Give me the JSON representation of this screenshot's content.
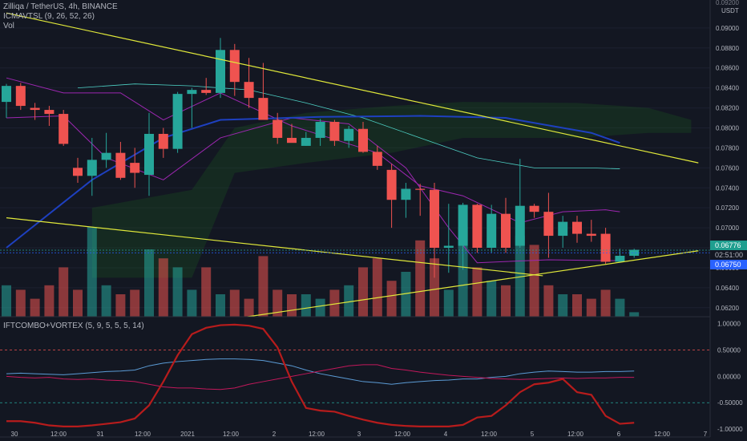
{
  "header": {
    "symbol_line": "Zilliqa / TetherUS, 4h, BINANCE",
    "indicator1": "ICMAVTSL (9, 26, 52, 26)",
    "indicator2": "Vol",
    "indicator3": "IFTCOMBO+VORTEX (5, 9, 5, 5, 5, 14)"
  },
  "price_axis": {
    "currency": "USDT",
    "top_partial": "0.09200",
    "ticks": [
      "0.09000",
      "0.08800",
      "0.08600",
      "0.08400",
      "0.08200",
      "0.08000",
      "0.07800",
      "0.07600",
      "0.07400",
      "0.07200",
      "0.07000",
      "0.06800",
      "0.06600",
      "0.06400",
      "0.06200"
    ]
  },
  "price_badges": {
    "current": "0.06776",
    "countdown": "02:51:00",
    "low": "0.06750"
  },
  "osc_axis": {
    "ticks": [
      "1.00000",
      "0.50000",
      "0.00000",
      "-0.50000",
      "-1.00000"
    ]
  },
  "time_axis": {
    "labels": [
      "30",
      "12:00",
      "31",
      "12:00",
      "2021",
      "12:00",
      "2",
      "12:00",
      "3",
      "12:00",
      "4",
      "12:00",
      "5",
      "12:00",
      "6",
      "12:00",
      "7"
    ]
  },
  "colors": {
    "up": "#26a69a",
    "down": "#ef5350",
    "trend": "#e0e83a",
    "vortex": "#5b9bd5",
    "ift": "#b71c1c",
    "ma": "#1e40c0"
  },
  "chart_data": {
    "type": "candlestick",
    "interval": "4h",
    "candles": [
      {
        "o": 0.0826,
        "h": 0.0844,
        "l": 0.081,
        "c": 0.0842
      },
      {
        "o": 0.0842,
        "h": 0.0845,
        "l": 0.0818,
        "c": 0.0822
      },
      {
        "o": 0.082,
        "h": 0.0825,
        "l": 0.0808,
        "c": 0.0818
      },
      {
        "o": 0.0818,
        "h": 0.0822,
        "l": 0.0802,
        "c": 0.0814
      },
      {
        "o": 0.0814,
        "h": 0.0818,
        "l": 0.0782,
        "c": 0.0784
      },
      {
        "o": 0.076,
        "h": 0.077,
        "l": 0.0745,
        "c": 0.0752
      },
      {
        "o": 0.0752,
        "h": 0.079,
        "l": 0.0732,
        "c": 0.0768
      },
      {
        "o": 0.0768,
        "h": 0.0795,
        "l": 0.076,
        "c": 0.0775
      },
      {
        "o": 0.0775,
        "h": 0.0786,
        "l": 0.0748,
        "c": 0.075
      },
      {
        "o": 0.0765,
        "h": 0.078,
        "l": 0.074,
        "c": 0.0755
      },
      {
        "o": 0.0753,
        "h": 0.0815,
        "l": 0.0732,
        "c": 0.0794
      },
      {
        "o": 0.0794,
        "h": 0.08,
        "l": 0.077,
        "c": 0.0779
      },
      {
        "o": 0.0779,
        "h": 0.0836,
        "l": 0.0775,
        "c": 0.0834
      },
      {
        "o": 0.0834,
        "h": 0.084,
        "l": 0.08,
        "c": 0.0838
      },
      {
        "o": 0.0838,
        "h": 0.085,
        "l": 0.0833,
        "c": 0.0835
      },
      {
        "o": 0.0835,
        "h": 0.089,
        "l": 0.083,
        "c": 0.0878
      },
      {
        "o": 0.0878,
        "h": 0.0884,
        "l": 0.0832,
        "c": 0.0846
      },
      {
        "o": 0.0846,
        "h": 0.087,
        "l": 0.082,
        "c": 0.083
      },
      {
        "o": 0.083,
        "h": 0.0865,
        "l": 0.081,
        "c": 0.0808
      },
      {
        "o": 0.0808,
        "h": 0.0815,
        "l": 0.0784,
        "c": 0.079
      },
      {
        "o": 0.079,
        "h": 0.0804,
        "l": 0.0786,
        "c": 0.0785
      },
      {
        "o": 0.0782,
        "h": 0.0796,
        "l": 0.0782,
        "c": 0.079
      },
      {
        "o": 0.079,
        "h": 0.0809,
        "l": 0.0782,
        "c": 0.0806
      },
      {
        "o": 0.0806,
        "h": 0.0808,
        "l": 0.0782,
        "c": 0.0787
      },
      {
        "o": 0.0787,
        "h": 0.0802,
        "l": 0.078,
        "c": 0.0799
      },
      {
        "o": 0.0799,
        "h": 0.0806,
        "l": 0.0775,
        "c": 0.0776
      },
      {
        "o": 0.0776,
        "h": 0.0782,
        "l": 0.0758,
        "c": 0.0762
      },
      {
        "o": 0.0758,
        "h": 0.0764,
        "l": 0.07,
        "c": 0.0728
      },
      {
        "o": 0.0728,
        "h": 0.0745,
        "l": 0.071,
        "c": 0.0739
      },
      {
        "o": 0.0739,
        "h": 0.0744,
        "l": 0.0712,
        "c": 0.0738
      },
      {
        "o": 0.0738,
        "h": 0.0745,
        "l": 0.065,
        "c": 0.068
      },
      {
        "o": 0.068,
        "h": 0.0724,
        "l": 0.0655,
        "c": 0.0682
      },
      {
        "o": 0.0682,
        "h": 0.0725,
        "l": 0.0658,
        "c": 0.0723
      },
      {
        "o": 0.0723,
        "h": 0.0724,
        "l": 0.0675,
        "c": 0.068
      },
      {
        "o": 0.068,
        "h": 0.0723,
        "l": 0.0675,
        "c": 0.0714
      },
      {
        "o": 0.0714,
        "h": 0.073,
        "l": 0.0675,
        "c": 0.068
      },
      {
        "o": 0.0682,
        "h": 0.0769,
        "l": 0.068,
        "c": 0.0722
      },
      {
        "o": 0.0722,
        "h": 0.0724,
        "l": 0.071,
        "c": 0.0716
      },
      {
        "o": 0.0716,
        "h": 0.0735,
        "l": 0.067,
        "c": 0.0692
      },
      {
        "o": 0.0692,
        "h": 0.0712,
        "l": 0.068,
        "c": 0.0706
      },
      {
        "o": 0.0706,
        "h": 0.0712,
        "l": 0.0685,
        "c": 0.0694
      },
      {
        "o": 0.0694,
        "h": 0.0708,
        "l": 0.0686,
        "c": 0.0692
      },
      {
        "o": 0.0694,
        "h": 0.07,
        "l": 0.0664,
        "c": 0.0666
      },
      {
        "o": 0.0666,
        "h": 0.0679,
        "l": 0.0667,
        "c": 0.0672
      },
      {
        "o": 0.0672,
        "h": 0.0679,
        "l": 0.067,
        "c": 0.0678
      }
    ],
    "volume": [
      0.14,
      0.12,
      0.08,
      0.14,
      0.22,
      0.12,
      0.4,
      0.14,
      0.1,
      0.12,
      0.3,
      0.26,
      0.22,
      0.12,
      0.22,
      0.1,
      0.12,
      0.08,
      0.27,
      0.12,
      0.1,
      0.1,
      0.08,
      0.12,
      0.14,
      0.22,
      0.26,
      0.16,
      0.2,
      0.34,
      0.26,
      0.12,
      0.4,
      0.22,
      0.16,
      0.14,
      0.36,
      0.32,
      0.14,
      0.1,
      0.1,
      0.08,
      0.12,
      0.08,
      0.02
    ],
    "trendlines": [
      {
        "from": [
          0,
          0.0915
        ],
        "to": [
          48.5,
          0.0765
        ]
      },
      {
        "from": [
          0,
          0.071
        ],
        "to": [
          37.6,
          0.0652
        ]
      },
      {
        "from": [
          16.9,
          0.0611
        ],
        "to": [
          48.5,
          0.0677
        ]
      }
    ],
    "horizontal_levels": [
      0.06776,
      0.0675
    ],
    "moving_average": [
      [
        0,
        0.068
      ],
      [
        6,
        0.0748
      ],
      [
        11,
        0.079
      ],
      [
        15,
        0.0808
      ],
      [
        22,
        0.0811
      ],
      [
        29,
        0.0812
      ],
      [
        35,
        0.081
      ],
      [
        41,
        0.0795
      ],
      [
        43,
        0.0785
      ]
    ],
    "cloud_upper": [
      [
        6,
        0.072
      ],
      [
        13,
        0.0738
      ],
      [
        16,
        0.08
      ],
      [
        21,
        0.0815
      ],
      [
        27,
        0.0822
      ],
      [
        32,
        0.0826
      ],
      [
        40,
        0.0825
      ],
      [
        45,
        0.082
      ],
      [
        48,
        0.0808
      ]
    ],
    "cloud_lower": [
      [
        6,
        0.065
      ],
      [
        13,
        0.065
      ],
      [
        16,
        0.0755
      ],
      [
        21,
        0.0765
      ],
      [
        27,
        0.0775
      ],
      [
        32,
        0.079
      ],
      [
        40,
        0.079
      ],
      [
        45,
        0.0795
      ],
      [
        48,
        0.0795
      ]
    ],
    "band_a": [
      [
        0,
        0.085
      ],
      [
        4,
        0.0835
      ],
      [
        8,
        0.0835
      ],
      [
        11,
        0.0808
      ],
      [
        15,
        0.0835
      ],
      [
        20,
        0.0802
      ],
      [
        26,
        0.0775
      ],
      [
        29,
        0.0742
      ],
      [
        32,
        0.0732
      ],
      [
        36,
        0.0705
      ],
      [
        39,
        0.0716
      ],
      [
        42,
        0.0718
      ],
      [
        43,
        0.0716
      ]
    ],
    "band_b": [
      [
        0,
        0.081
      ],
      [
        4,
        0.0812
      ],
      [
        7,
        0.077
      ],
      [
        11,
        0.0748
      ],
      [
        15,
        0.079
      ],
      [
        20,
        0.081
      ],
      [
        24,
        0.0804
      ],
      [
        28,
        0.076
      ],
      [
        31,
        0.07
      ],
      [
        33,
        0.0665
      ],
      [
        38,
        0.0668
      ],
      [
        43,
        0.0667
      ]
    ],
    "band_c": [
      [
        5,
        0.084
      ],
      [
        9,
        0.0844
      ],
      [
        13,
        0.0842
      ],
      [
        17,
        0.0838
      ],
      [
        21,
        0.0825
      ],
      [
        25,
        0.081
      ],
      [
        29,
        0.079
      ],
      [
        33,
        0.077
      ],
      [
        37,
        0.076
      ],
      [
        41,
        0.076
      ],
      [
        43,
        0.0759
      ]
    ],
    "oscillator": {
      "ift": [
        -0.85,
        -0.85,
        -0.88,
        -0.93,
        -0.95,
        -0.95,
        -0.93,
        -0.9,
        -0.87,
        -0.8,
        -0.55,
        -0.1,
        0.4,
        0.8,
        0.92,
        0.97,
        0.98,
        0.96,
        0.9,
        0.55,
        -0.1,
        -0.6,
        -0.65,
        -0.67,
        -0.75,
        -0.82,
        -0.88,
        -0.92,
        -0.94,
        -0.95,
        -0.95,
        -0.95,
        -0.92,
        -0.78,
        -0.75,
        -0.55,
        -0.3,
        -0.15,
        -0.12,
        -0.05,
        -0.3,
        -0.35,
        -0.75,
        -0.9,
        -0.88
      ],
      "vortex_pos": [
        0.05,
        0.06,
        0.05,
        0.04,
        0.03,
        0.05,
        0.07,
        0.09,
        0.1,
        0.12,
        0.2,
        0.25,
        0.28,
        0.3,
        0.32,
        0.33,
        0.33,
        0.32,
        0.3,
        0.25,
        0.2,
        0.12,
        0.05,
        0.0,
        -0.05,
        -0.1,
        -0.12,
        -0.15,
        -0.12,
        -0.1,
        -0.08,
        -0.07,
        -0.05,
        -0.05,
        -0.02,
        0.0,
        0.05,
        0.08,
        0.1,
        0.09,
        0.08,
        0.08,
        0.09,
        0.09,
        0.1
      ],
      "vortex_neg": [
        0.0,
        -0.02,
        -0.03,
        -0.02,
        -0.05,
        -0.06,
        -0.05,
        -0.07,
        -0.08,
        -0.1,
        -0.15,
        -0.2,
        -0.22,
        -0.22,
        -0.24,
        -0.25,
        -0.22,
        -0.15,
        -0.1,
        -0.05,
        0.0,
        0.05,
        0.1,
        0.15,
        0.2,
        0.22,
        0.22,
        0.15,
        0.12,
        0.08,
        0.05,
        0.02,
        0.0,
        -0.02,
        -0.04,
        -0.05,
        -0.06,
        -0.05,
        -0.04,
        -0.03,
        -0.04,
        -0.03,
        -0.03,
        -0.02,
        -0.02
      ]
    },
    "y_range_price": [
      0.0611,
      0.0928
    ],
    "y_range_osc": [
      -1.15,
      1.1
    ]
  }
}
